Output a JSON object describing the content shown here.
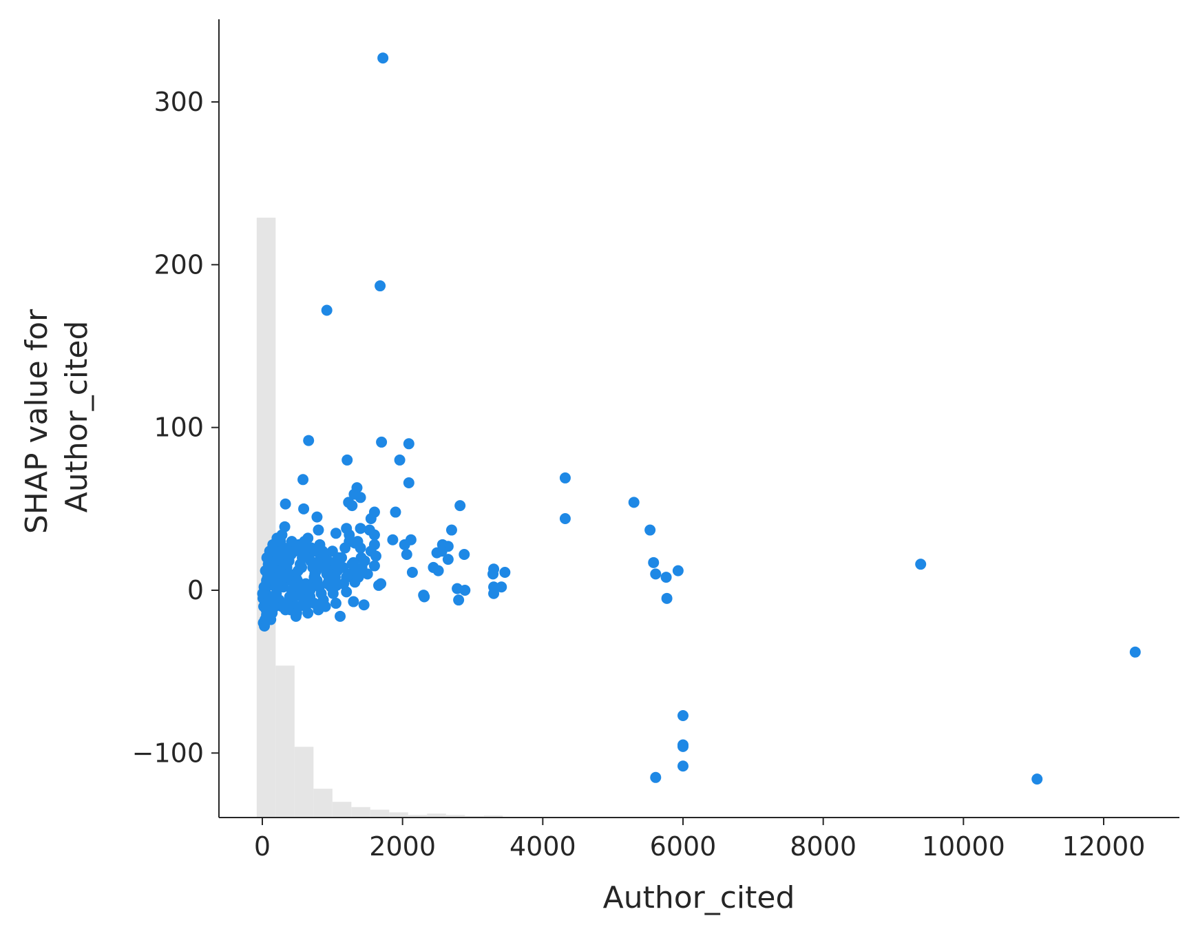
{
  "chart_data": {
    "type": "scatter",
    "title": "",
    "xlabel": "Author_cited",
    "ylabel_lines": [
      "SHAP value for",
      "Author_cited"
    ],
    "xlim": [
      -600,
      13000
    ],
    "ylim": [
      -138,
      350
    ],
    "x_ticks": [
      0,
      2000,
      4000,
      6000,
      8000,
      10000,
      12000
    ],
    "x_tick_labels": [
      "0",
      "2000",
      "4000",
      "6000",
      "8000",
      "10000",
      "12000"
    ],
    "y_ticks": [
      -100,
      0,
      100,
      200,
      300
    ],
    "y_tick_labels": [
      "−100",
      "0",
      "100",
      "200",
      "300"
    ],
    "grid": false,
    "colors": {
      "points": "#1e88e5",
      "histogram": "#e5e5e5",
      "axes": "#262626"
    },
    "histogram": {
      "bin_width": 270,
      "bins": [
        {
          "x0": -80,
          "count": 229
        },
        {
          "x0": 190,
          "count": 58
        },
        {
          "x0": 460,
          "count": 27
        },
        {
          "x0": 730,
          "count": 11
        },
        {
          "x0": 1000,
          "count": 6
        },
        {
          "x0": 1270,
          "count": 4
        },
        {
          "x0": 1540,
          "count": 3
        },
        {
          "x0": 1810,
          "count": 2
        },
        {
          "x0": 2080,
          "count": 1
        },
        {
          "x0": 2350,
          "count": 1.5
        },
        {
          "x0": 2620,
          "count": 1
        },
        {
          "x0": 2890,
          "count": 0.6
        },
        {
          "x0": 3160,
          "count": 0.8
        }
      ]
    },
    "points": [
      [
        1720,
        327
      ],
      [
        1680,
        187
      ],
      [
        920,
        172
      ],
      [
        660,
        92
      ],
      [
        1700,
        91
      ],
      [
        2090,
        90
      ],
      [
        1210,
        80
      ],
      [
        1960,
        80
      ],
      [
        4320,
        69
      ],
      [
        580,
        68
      ],
      [
        2090,
        66
      ],
      [
        1350,
        63
      ],
      [
        1310,
        59
      ],
      [
        1400,
        57
      ],
      [
        1230,
        54
      ],
      [
        330,
        53
      ],
      [
        1280,
        52
      ],
      [
        2820,
        52
      ],
      [
        5300,
        54
      ],
      [
        590,
        50
      ],
      [
        1600,
        48
      ],
      [
        1900,
        48
      ],
      [
        780,
        45
      ],
      [
        4320,
        44
      ],
      [
        1550,
        44
      ],
      [
        320,
        39
      ],
      [
        1200,
        38
      ],
      [
        1400,
        38
      ],
      [
        1530,
        37
      ],
      [
        5530,
        37
      ],
      [
        2700,
        37
      ],
      [
        1050,
        35
      ],
      [
        280,
        34
      ],
      [
        1600,
        34
      ],
      [
        800,
        37
      ],
      [
        1860,
        31
      ],
      [
        2120,
        31
      ],
      [
        1240,
        30
      ],
      [
        1320,
        29
      ],
      [
        1600,
        28
      ],
      [
        2030,
        28
      ],
      [
        2570,
        28
      ],
      [
        2650,
        27
      ],
      [
        1400,
        26
      ],
      [
        1550,
        24
      ],
      [
        2490,
        23
      ],
      [
        2560,
        24
      ],
      [
        2060,
        22
      ],
      [
        2880,
        22
      ],
      [
        1620,
        21
      ],
      [
        1600,
        15
      ],
      [
        2650,
        19
      ],
      [
        2440,
        14
      ],
      [
        2510,
        12
      ],
      [
        2140,
        11
      ],
      [
        1390,
        11
      ],
      [
        1410,
        20
      ],
      [
        1300,
        17
      ],
      [
        3300,
        13
      ],
      [
        3290,
        10
      ],
      [
        3460,
        11
      ],
      [
        5580,
        17
      ],
      [
        5610,
        10
      ],
      [
        5760,
        8
      ],
      [
        5930,
        12
      ],
      [
        9390,
        16
      ],
      [
        1690,
        4
      ],
      [
        1660,
        3
      ],
      [
        1320,
        5
      ],
      [
        1200,
        -1
      ],
      [
        1060,
        3
      ],
      [
        2780,
        1
      ],
      [
        2890,
        0
      ],
      [
        3300,
        2
      ],
      [
        3410,
        2
      ],
      [
        2300,
        -3
      ],
      [
        2310,
        -4
      ],
      [
        2800,
        -6
      ],
      [
        3300,
        -2
      ],
      [
        5770,
        -5
      ],
      [
        1450,
        -9
      ],
      [
        1300,
        -7
      ],
      [
        1050,
        -8
      ],
      [
        1110,
        -16
      ],
      [
        480,
        -16
      ],
      [
        12450,
        -38
      ],
      [
        6000,
        -77
      ],
      [
        6000,
        -95
      ],
      [
        6000,
        -96
      ],
      [
        6000,
        -108
      ],
      [
        5610,
        -115
      ],
      [
        11050,
        -116
      ],
      [
        30,
        -22
      ],
      [
        15,
        -20
      ],
      [
        40,
        -18
      ],
      [
        60,
        -15
      ],
      [
        80,
        -12
      ],
      [
        20,
        -10
      ],
      [
        50,
        -8
      ],
      [
        10,
        -5
      ],
      [
        70,
        -3
      ],
      [
        35,
        0
      ],
      [
        90,
        3
      ],
      [
        120,
        6
      ],
      [
        140,
        10
      ],
      [
        160,
        14
      ],
      [
        180,
        20
      ],
      [
        200,
        26
      ],
      [
        210,
        32
      ],
      [
        150,
        28
      ],
      [
        110,
        15
      ],
      [
        100,
        -16
      ],
      [
        130,
        -8
      ],
      [
        170,
        -4
      ],
      [
        190,
        2
      ],
      [
        230,
        8
      ],
      [
        250,
        12
      ],
      [
        270,
        18
      ],
      [
        290,
        22
      ],
      [
        310,
        26
      ],
      [
        260,
        30
      ],
      [
        240,
        -6
      ],
      [
        280,
        -10
      ],
      [
        330,
        -12
      ],
      [
        360,
        -8
      ],
      [
        390,
        -4
      ],
      [
        420,
        0
      ],
      [
        450,
        4
      ],
      [
        480,
        8
      ],
      [
        510,
        12
      ],
      [
        540,
        16
      ],
      [
        570,
        20
      ],
      [
        600,
        24
      ],
      [
        630,
        28
      ],
      [
        660,
        22
      ],
      [
        690,
        18
      ],
      [
        720,
        14
      ],
      [
        750,
        10
      ],
      [
        780,
        6
      ],
      [
        810,
        2
      ],
      [
        840,
        -2
      ],
      [
        870,
        -6
      ],
      [
        900,
        -10
      ],
      [
        930,
        4
      ],
      [
        960,
        8
      ],
      [
        990,
        12
      ],
      [
        1020,
        16
      ],
      [
        350,
        14
      ],
      [
        380,
        18
      ],
      [
        410,
        22
      ],
      [
        440,
        26
      ],
      [
        470,
        10
      ],
      [
        500,
        6
      ],
      [
        530,
        2
      ],
      [
        560,
        -2
      ],
      [
        590,
        -6
      ],
      [
        620,
        -10
      ],
      [
        650,
        -14
      ],
      [
        680,
        0
      ],
      [
        710,
        4
      ],
      [
        740,
        8
      ],
      [
        770,
        12
      ],
      [
        800,
        16
      ],
      [
        830,
        20
      ],
      [
        860,
        24
      ],
      [
        890,
        14
      ],
      [
        920,
        10
      ],
      [
        950,
        6
      ],
      [
        980,
        2
      ],
      [
        1010,
        -2
      ],
      [
        1040,
        8
      ],
      [
        1070,
        12
      ],
      [
        1100,
        16
      ],
      [
        1130,
        20
      ],
      [
        1160,
        4
      ],
      [
        340,
        6
      ],
      [
        370,
        10
      ],
      [
        400,
        -12
      ],
      [
        430,
        -8
      ],
      [
        460,
        -4
      ],
      [
        490,
        -14
      ],
      [
        520,
        -10
      ],
      [
        550,
        0
      ],
      [
        300,
        2
      ],
      [
        320,
        8
      ],
      [
        200,
        -2
      ],
      [
        220,
        4
      ],
      [
        180,
        -10
      ],
      [
        160,
        -6
      ],
      [
        140,
        -14
      ],
      [
        120,
        -18
      ],
      [
        60,
        6
      ],
      [
        45,
        12
      ],
      [
        25,
        2
      ],
      [
        5,
        -2
      ],
      [
        55,
        -12
      ],
      [
        75,
        8
      ],
      [
        95,
        -6
      ],
      [
        85,
        16
      ],
      [
        65,
        20
      ],
      [
        105,
        24
      ],
      [
        600,
        30
      ],
      [
        650,
        32
      ],
      [
        700,
        26
      ],
      [
        750,
        24
      ],
      [
        820,
        28
      ],
      [
        880,
        22
      ],
      [
        940,
        18
      ],
      [
        1000,
        24
      ],
      [
        1080,
        20
      ],
      [
        1150,
        14
      ],
      [
        1200,
        8
      ],
      [
        1250,
        10
      ],
      [
        1280,
        16
      ],
      [
        1330,
        12
      ],
      [
        1370,
        8
      ],
      [
        1420,
        14
      ],
      [
        1460,
        18
      ],
      [
        1500,
        10
      ],
      [
        420,
        30
      ],
      [
        460,
        24
      ],
      [
        520,
        28
      ],
      [
        560,
        14
      ],
      [
        620,
        4
      ],
      [
        680,
        -4
      ],
      [
        740,
        -8
      ],
      [
        800,
        -12
      ],
      [
        860,
        -8
      ],
      [
        1180,
        26
      ],
      [
        1240,
        34
      ],
      [
        1360,
        30
      ]
    ]
  }
}
